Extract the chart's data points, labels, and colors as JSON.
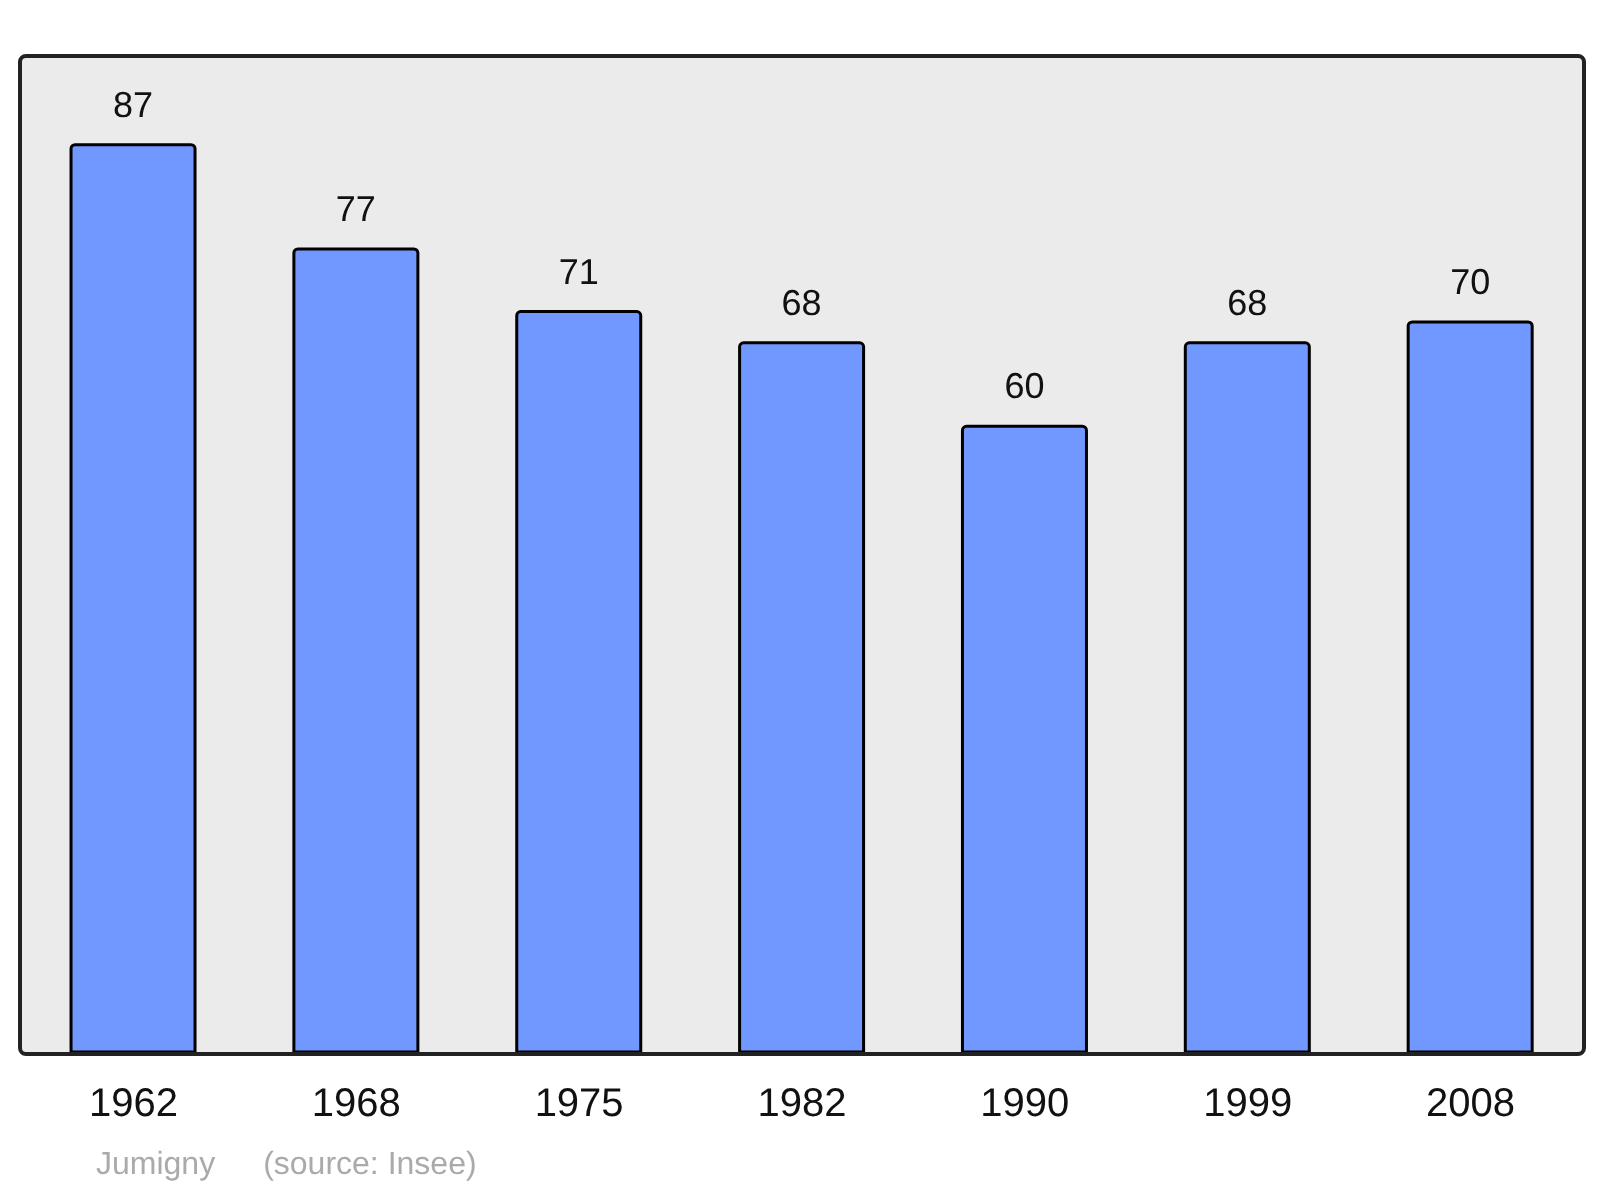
{
  "chart_data": {
    "type": "bar",
    "categories": [
      "1962",
      "1968",
      "1975",
      "1982",
      "1990",
      "1999",
      "2008"
    ],
    "values": [
      87,
      77,
      71,
      68,
      60,
      68,
      70
    ],
    "color": "#7098ff",
    "data_labels": true,
    "annotations": [
      "Jumigny",
      "(source: Insee)"
    ]
  }
}
